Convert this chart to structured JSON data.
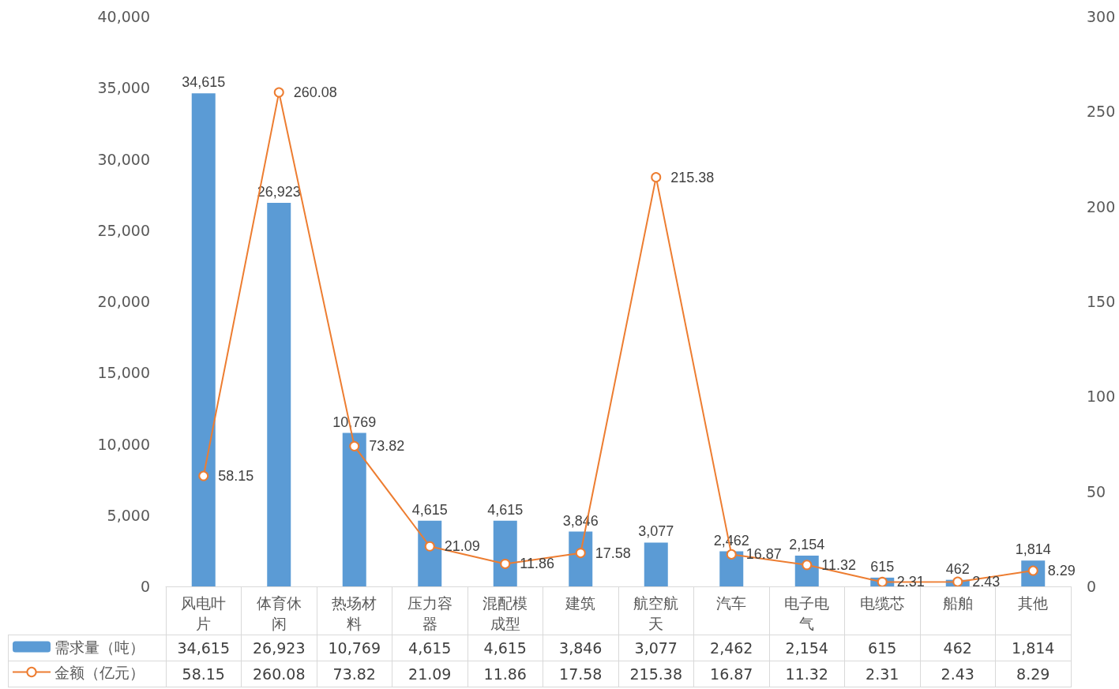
{
  "chart_data": {
    "type": "bar",
    "categories": [
      "风电叶片",
      "体育休闲",
      "热场材料",
      "压力容器",
      "混配模成型",
      "建筑",
      "航空航天",
      "汽车",
      "电子电气",
      "电缆芯",
      "船舶",
      "其他"
    ],
    "series": [
      {
        "name": "需求量（吨）",
        "color": "#5b9bd5",
        "values": [
          34615,
          26923,
          10769,
          4615,
          4615,
          3846,
          3077,
          2462,
          2154,
          615,
          462,
          1814
        ],
        "value_labels": [
          "34,615",
          "26,923",
          "10,769",
          "4,615",
          "4,615",
          "3,846",
          "3,077",
          "2,462",
          "2,154",
          "615",
          "462",
          "1,814"
        ]
      },
      {
        "name": "金额（亿元）",
        "type": "line",
        "axis": "y2",
        "color": "#ed7d31",
        "marker": "circle",
        "values": [
          58.15,
          260.08,
          73.82,
          21.09,
          11.86,
          17.58,
          215.38,
          16.87,
          11.32,
          2.31,
          2.43,
          8.29
        ],
        "value_labels": [
          "58.15",
          "260.08",
          "73.82",
          "21.09",
          "11.86",
          "17.58",
          "215.38",
          "16.87",
          "11.32",
          "2.31",
          "2.43",
          "8.29"
        ]
      }
    ],
    "ylim": [
      0,
      40000
    ],
    "yticks": [
      0,
      {
        "value": 5000,
        "label": "5,000"
      },
      {
        "value": 10000,
        "label": "10,000"
      },
      {
        "value": 15000,
        "label": "15,000"
      },
      {
        "value": 20000,
        "label": "20,000"
      },
      {
        "value": 25000,
        "label": "25,000"
      },
      {
        "value": 30000,
        "label": "30,000"
      },
      {
        "value": 35000,
        "label": "35,000"
      },
      {
        "value": 40000,
        "label": "40,000"
      }
    ],
    "y2lim": [
      0,
      300
    ],
    "y2ticks": [
      0,
      50,
      100,
      150,
      200,
      250,
      300
    ],
    "grid": false,
    "legend": "bottom left"
  }
}
